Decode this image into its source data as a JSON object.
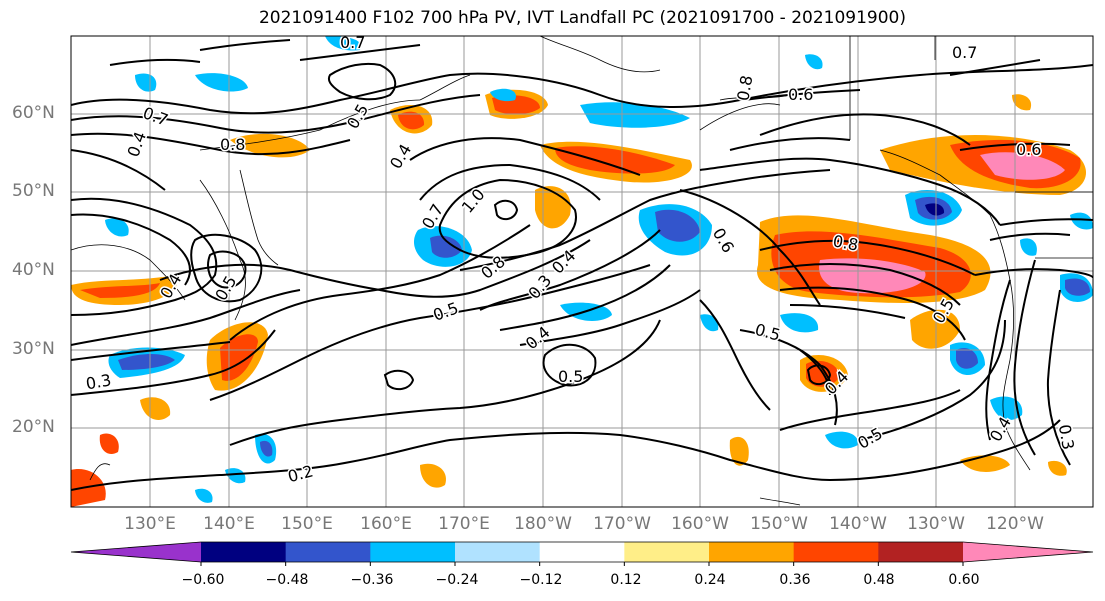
{
  "title": "2021091400 F102 700 hPa PV, IVT Landfall PC (2021091700 - 2021091900)",
  "lat_labels": [
    "60°N",
    "50°N",
    "40°N",
    "30°N",
    "20°N"
  ],
  "lon_labels": [
    "130°E",
    "140°E",
    "150°E",
    "160°E",
    "170°E",
    "180°W",
    "170°W",
    "160°W",
    "150°W",
    "140°W",
    "130°W",
    "120°W"
  ],
  "colorbar": {
    "colors": [
      "#9932cc",
      "#000080",
      "#3355cc",
      "#00bfff",
      "#b0e2ff",
      "#ffffff",
      "#ffee88",
      "#ffa500",
      "#ff4500",
      "#b22222",
      "#ff88b8"
    ],
    "tick_labels": [
      "−0.60",
      "−0.48",
      "−0.36",
      "−0.24",
      "−0.12",
      "0.12",
      "0.24",
      "0.36",
      "0.48",
      "0.60"
    ]
  },
  "contour_labels": [
    "0.7",
    "0.7",
    "0.8",
    "0.6",
    "0.7",
    "0.4",
    "0.8",
    "0.5",
    "0.4",
    "1.0",
    "0.7",
    "0.8",
    "0.5",
    "0.3",
    "0.4",
    "0.6",
    "0.8",
    "0.6",
    "0.4",
    "0.5",
    "0.4",
    "0.5",
    "0.5",
    "0.3",
    "0.2",
    "0.5",
    "0.4",
    "0.5",
    "0.4",
    "0.3"
  ]
}
